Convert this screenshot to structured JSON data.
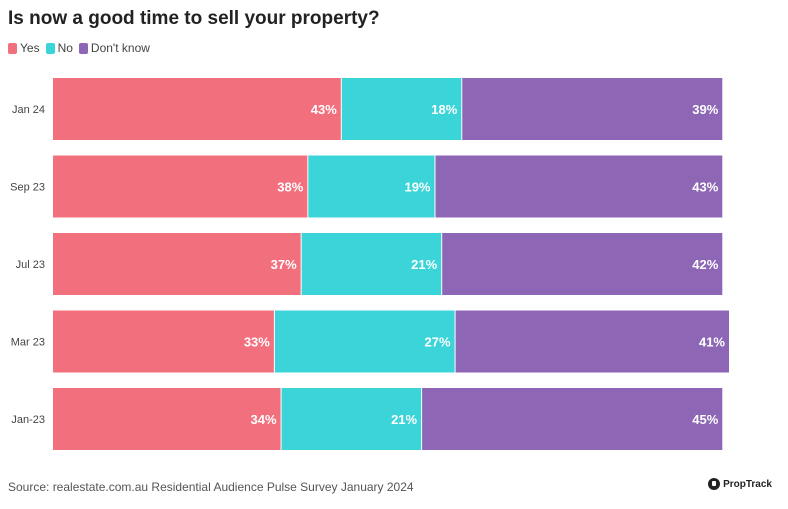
{
  "chart_data": {
    "type": "bar",
    "orientation": "horizontal",
    "stacked": true,
    "title": "Is now a good time to sell your property?",
    "categories": [
      "Jan 24",
      "Sep 23",
      "Jul 23",
      "Mar 23",
      "Jan-23"
    ],
    "series": [
      {
        "name": "Yes",
        "color": "#f2707d",
        "values": [
          43,
          38,
          37,
          33,
          34
        ],
        "labels": [
          "43%",
          "38%",
          "37%",
          "33%",
          "34%"
        ]
      },
      {
        "name": "No",
        "color": "#3bd4d9",
        "values": [
          18,
          19,
          21,
          27,
          21
        ],
        "labels": [
          "18%",
          "19%",
          "21%",
          "27%",
          "21%"
        ]
      },
      {
        "name": "Don't know",
        "color": "#8e66b6",
        "values": [
          39,
          43,
          42,
          41,
          45
        ],
        "labels": [
          "39%",
          "43%",
          "42%",
          "41%",
          "45%"
        ]
      }
    ],
    "xlim": [
      0,
      101
    ],
    "xlabel": "",
    "ylabel": "",
    "legend_position": "top-left",
    "grid": false
  },
  "source": "Source: realestate.com.au Residential Audience Pulse Survey January 2024",
  "brand": "PropTrack"
}
